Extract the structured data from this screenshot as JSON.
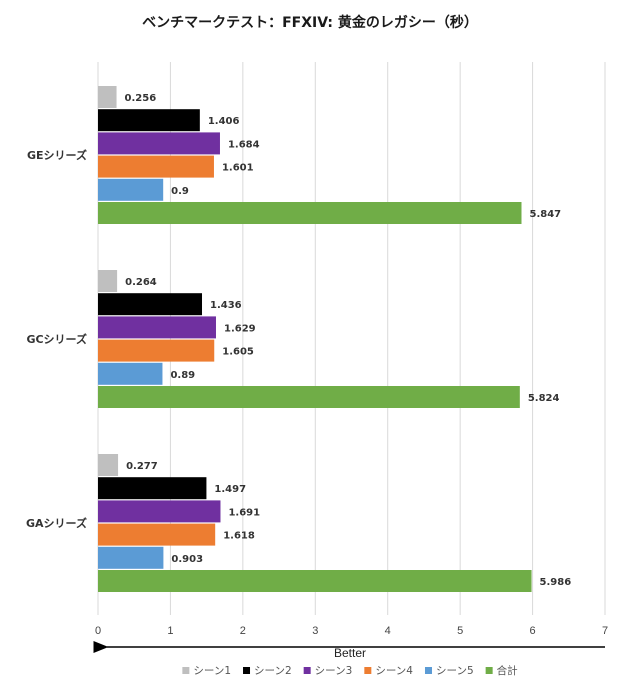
{
  "chart_data": {
    "type": "bar",
    "orientation": "horizontal",
    "title": "ベンチマークテスト：FFXIV: 黄金のレガシー（秒）",
    "categories": [
      "GEシリーズ",
      "GCシリーズ",
      "GAシリーズ"
    ],
    "series": [
      {
        "name": "シーン1",
        "color": "#bfbfbf",
        "values": [
          0.256,
          0.264,
          0.277
        ],
        "labels": [
          "0.256",
          "0.264",
          "0.277"
        ]
      },
      {
        "name": "シーン2",
        "color": "#000000",
        "values": [
          1.406,
          1.436,
          1.497
        ],
        "labels": [
          "1.406",
          "1.436",
          "1.497"
        ]
      },
      {
        "name": "シーン3",
        "color": "#7030a0",
        "values": [
          1.684,
          1.629,
          1.691
        ],
        "labels": [
          "1.684",
          "1.629",
          "1.691"
        ]
      },
      {
        "name": "シーン4",
        "color": "#ed7d31",
        "values": [
          1.601,
          1.605,
          1.618
        ],
        "labels": [
          "1.601",
          "1.605",
          "1.618"
        ]
      },
      {
        "name": "シーン5",
        "color": "#5b9bd5",
        "values": [
          0.9,
          0.89,
          0.903
        ],
        "labels": [
          "0.9",
          "0.89",
          "0.903"
        ]
      },
      {
        "name": "合計",
        "color": "#70ad47",
        "values": [
          5.847,
          5.824,
          5.986
        ],
        "labels": [
          "5.847",
          "5.824",
          "5.986"
        ]
      }
    ],
    "xlim": [
      0,
      7
    ],
    "xticks": [
      "0",
      "1",
      "2",
      "3",
      "4",
      "5",
      "6",
      "7"
    ],
    "xlabel": "Better",
    "ylabel": "",
    "grid": true,
    "legend": "bottom"
  }
}
